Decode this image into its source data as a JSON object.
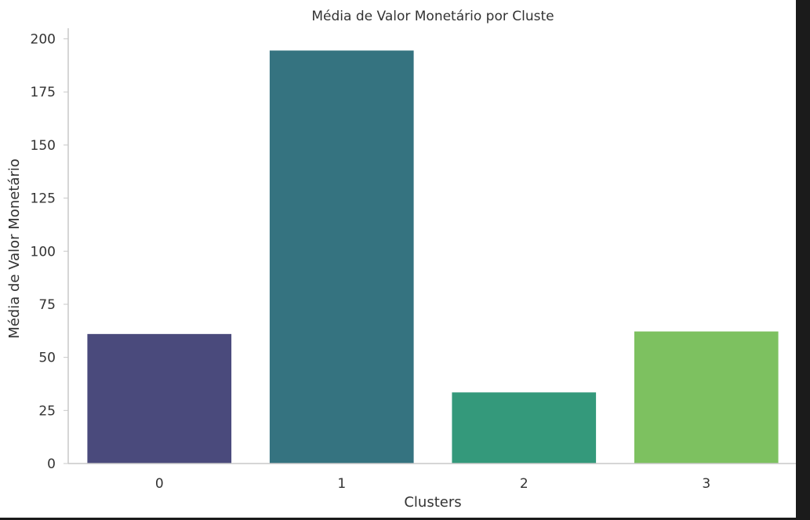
{
  "chart_data": {
    "type": "bar",
    "title": "Média de Valor Monetário por Cluste",
    "xlabel": "Clusters",
    "ylabel": "Média de Valor Monetário",
    "categories": [
      "0",
      "1",
      "2",
      "3"
    ],
    "values": [
      61,
      194.5,
      33.5,
      62.2
    ],
    "ylim": [
      0,
      205
    ],
    "yticks": [
      0,
      25,
      50,
      75,
      100,
      125,
      150,
      175,
      200
    ],
    "colors": [
      "#4a4a7c",
      "#357380",
      "#34997b",
      "#7dc160"
    ],
    "grid": false,
    "legend": "none"
  }
}
